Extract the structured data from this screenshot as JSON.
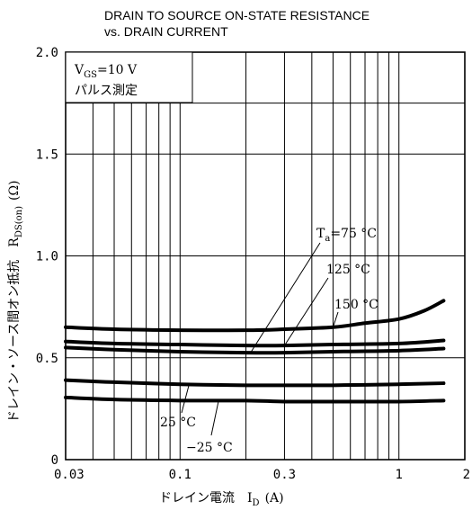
{
  "chart_data": {
    "type": "line",
    "title": "DRAIN TO SOURCE ON-STATE RESISTANCE",
    "subtitle": "vs. DRAIN CURRENT",
    "xlabel": "ドレイン電流　I",
    "xlabel_sub": "D",
    "xlabel_unit": "(A)",
    "ylabel": "ドレイン・ソース間オン抵抗　R",
    "ylabel_sub": "DS(on)",
    "ylabel_unit": "(Ω)",
    "x_scale": "log",
    "xlim": [
      0.03,
      2
    ],
    "ylim": [
      0,
      2.0
    ],
    "grid": true,
    "x_ticks": [
      {
        "value": 0.03,
        "label": "0.03"
      },
      {
        "value": 0.1,
        "label": "0.1"
      },
      {
        "value": 0.3,
        "label": "0.3"
      },
      {
        "value": 1,
        "label": "1"
      },
      {
        "value": 2,
        "label": "2"
      }
    ],
    "y_ticks": [
      {
        "value": 0,
        "label": "0"
      },
      {
        "value": 0.5,
        "label": "0.5"
      },
      {
        "value": 1.0,
        "label": "1.0"
      },
      {
        "value": 1.5,
        "label": "1.5"
      },
      {
        "value": 2.0,
        "label": "2.0"
      }
    ],
    "x_gridlines": [
      0.03,
      0.04,
      0.05,
      0.06,
      0.07,
      0.08,
      0.09,
      0.1,
      0.2,
      0.3,
      0.4,
      0.5,
      0.6,
      0.7,
      0.8,
      0.9,
      1,
      2
    ],
    "y_gridlines": [
      0.5,
      1.0,
      1.5,
      1.75
    ],
    "condition_box": {
      "line1": "V",
      "line1_sub": "GS",
      "line1_rest": "=10 V",
      "line2": "パルス測定"
    },
    "series": [
      {
        "name": "150 °C",
        "x": [
          0.03,
          0.05,
          0.1,
          0.2,
          0.3,
          0.5,
          0.7,
          1.0,
          1.3,
          1.6
        ],
        "y": [
          0.65,
          0.64,
          0.635,
          0.635,
          0.64,
          0.65,
          0.67,
          0.69,
          0.73,
          0.78
        ]
      },
      {
        "name": "125 °C",
        "x": [
          0.03,
          0.05,
          0.1,
          0.2,
          0.3,
          0.5,
          1.0,
          1.6
        ],
        "y": [
          0.58,
          0.57,
          0.565,
          0.56,
          0.56,
          0.565,
          0.57,
          0.585
        ]
      },
      {
        "name": "75 °C",
        "x": [
          0.03,
          0.05,
          0.1,
          0.2,
          0.3,
          0.5,
          1.0,
          1.6
        ],
        "y": [
          0.55,
          0.54,
          0.53,
          0.525,
          0.525,
          0.53,
          0.535,
          0.545
        ]
      },
      {
        "name": "25 °C",
        "x": [
          0.03,
          0.05,
          0.1,
          0.2,
          0.3,
          0.5,
          1.0,
          1.6
        ],
        "y": [
          0.39,
          0.38,
          0.37,
          0.365,
          0.365,
          0.365,
          0.37,
          0.375
        ]
      },
      {
        "name": "−25 °C",
        "x": [
          0.03,
          0.05,
          0.1,
          0.2,
          0.3,
          0.5,
          1.0,
          1.6
        ],
        "y": [
          0.305,
          0.295,
          0.29,
          0.29,
          0.285,
          0.285,
          0.285,
          0.29
        ]
      }
    ],
    "annotations": [
      {
        "text": "T",
        "sub": "a",
        "rest": "=75 °C",
        "series": "75 °C"
      },
      {
        "text": "125 °C",
        "series": "125 °C"
      },
      {
        "text": "150 °C",
        "series": "150 °C"
      },
      {
        "text": "25 °C",
        "series": "25 °C"
      },
      {
        "text": "−25 °C",
        "series": "−25 °C"
      }
    ]
  }
}
